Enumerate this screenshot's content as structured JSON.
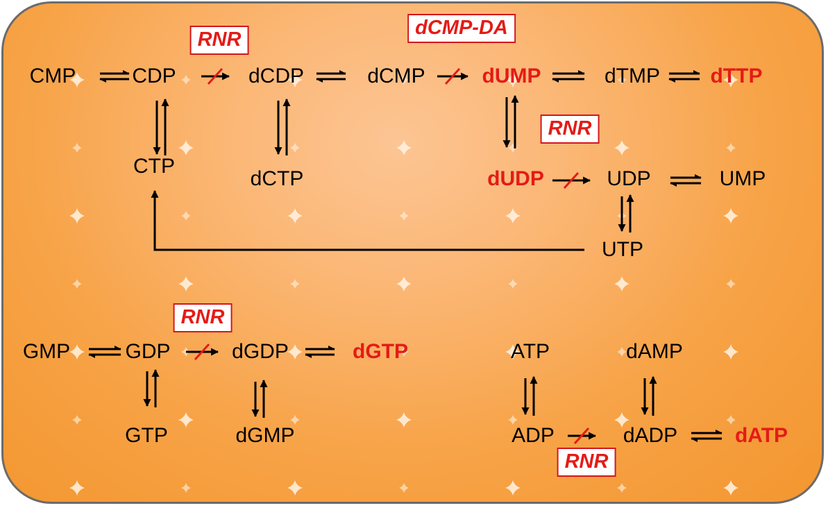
{
  "colors": {
    "background": "#f7a347",
    "border": "#6b6b6b",
    "highlight": "#e41b17",
    "text": "#000000",
    "arrow": "#000000",
    "block_mark": "#e41b17"
  },
  "nodes": {
    "cmp": "CMP",
    "cdp": "CDP",
    "dcdp": "dCDP",
    "dcmp": "dCMP",
    "dump": "dUMP",
    "dtmp": "dTMP",
    "dttp": "dTTP",
    "ctp": "CTP",
    "dctp": "dCTP",
    "dudp": "dUDP",
    "udp": "UDP",
    "ump": "UMP",
    "utp": "UTP",
    "gmp": "GMP",
    "gdp": "GDP",
    "dgdp": "dGDP",
    "dgtp": "dGTP",
    "gtp": "GTP",
    "dgmp": "dGMP",
    "atp": "ATP",
    "damp": "dAMP",
    "adp": "ADP",
    "dadp": "dADP",
    "datp": "dATP"
  },
  "enzymes": {
    "rnr_cdp": "RNR",
    "dcmp_da": "dCMP-DA",
    "rnr_udp": "RNR",
    "rnr_gdp": "RNR",
    "rnr_adp": "RNR"
  },
  "highlighted_nodes": [
    "dump",
    "dttp",
    "dudp",
    "dgtp",
    "datp"
  ],
  "blocked_reactions": [
    {
      "from": "CDP",
      "to": "dCDP",
      "enzyme": "RNR"
    },
    {
      "from": "dCMP",
      "to": "dUMP",
      "enzyme": "dCMP-DA"
    },
    {
      "from": "dUDP",
      "to": "UDP",
      "enzyme": "RNR"
    },
    {
      "from": "GDP",
      "to": "dGDP",
      "enzyme": "RNR"
    },
    {
      "from": "ADP",
      "to": "dADP",
      "enzyme": "RNR"
    }
  ]
}
